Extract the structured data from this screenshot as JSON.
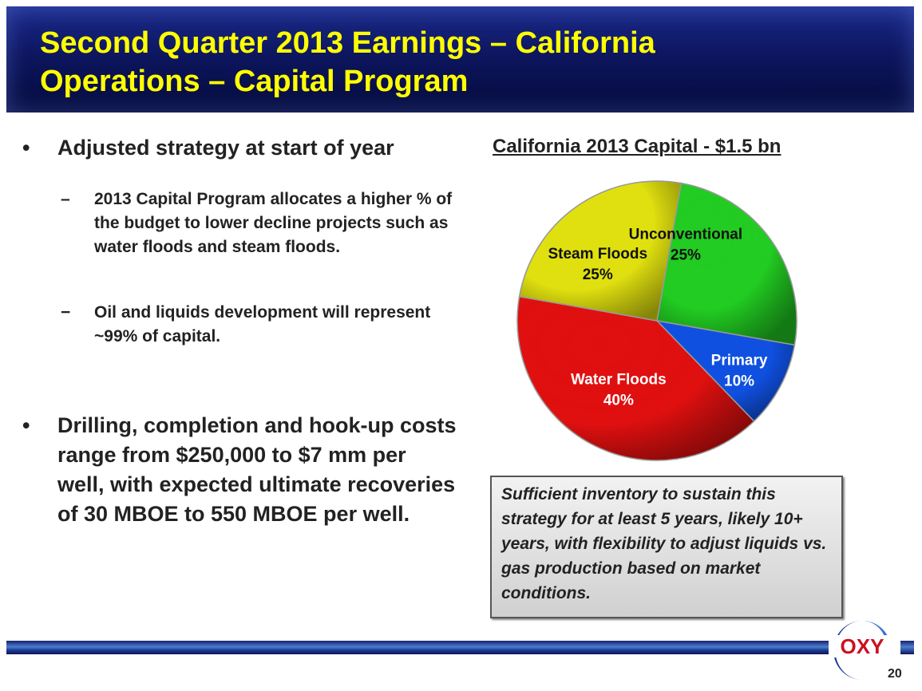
{
  "header": {
    "title_line1": "Second Quarter 2013 Earnings – California",
    "title_line2": "Operations – Capital Program"
  },
  "bullets": [
    {
      "marker": "•",
      "text": "Adjusted strategy at start of year",
      "sub": [
        {
          "marker": "–",
          "text": "2013 Capital Program allocates a higher % of the budget to lower decline projects such as water floods and steam floods."
        },
        {
          "marker": "−",
          "text": "Oil and liquids development will represent ~99% of capital."
        }
      ]
    },
    {
      "marker": "•",
      "text": "Drilling, completion and hook-up costs range from $250,000 to $7 mm per well, with expected ultimate recoveries of 30 MBOE to 550 MBOE per well."
    }
  ],
  "chart_data": {
    "type": "pie",
    "title": "California 2013 Capital - $1.5 bn",
    "slices": [
      {
        "label": "Unconventional",
        "value": 25,
        "display": "25%",
        "color": "#22cc22"
      },
      {
        "label": "Primary",
        "value": 10,
        "display": "10%",
        "color": "#1050e0"
      },
      {
        "label": "Water Floods",
        "value": 40,
        "display": "40%",
        "color": "#e01010"
      },
      {
        "label": "Steam Floods",
        "value": 25,
        "display": "25%",
        "color": "#e0e010"
      }
    ]
  },
  "callout": {
    "text": "Sufficient inventory to sustain this strategy for at least 5 years, likely 10+ years, with flexibility to adjust liquids vs. gas production based on market conditions."
  },
  "footer": {
    "logo": "OXY",
    "page_number": "20"
  }
}
